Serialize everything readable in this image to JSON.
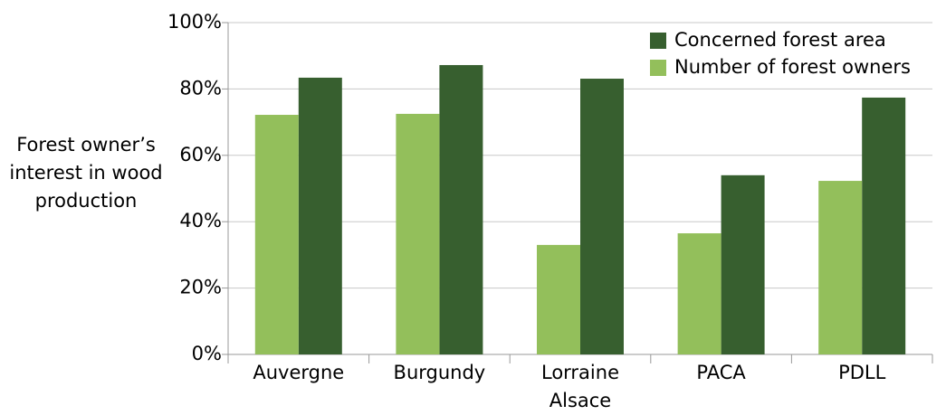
{
  "chart_data": {
    "type": "bar",
    "ylabel": "Forest owner’s interest in wood production",
    "categories": [
      "Auvergne",
      "Burgundy",
      "Lorraine Alsace",
      "PACA",
      "PDLL"
    ],
    "series": [
      {
        "name": "Concerned forest area",
        "color": "#375f2f",
        "values": [
          83.4,
          87.2,
          83.1,
          54.0,
          77.4
        ]
      },
      {
        "name": "Number of forest owners",
        "color": "#93bf5b",
        "values": [
          72.2,
          72.5,
          33.0,
          36.5,
          52.3
        ]
      }
    ],
    "ylim": [
      0,
      100
    ],
    "yticks": [
      {
        "value": 0,
        "label": "0%"
      },
      {
        "value": 20,
        "label": "20%"
      },
      {
        "value": 40,
        "label": "40%"
      },
      {
        "value": 60,
        "label": "60%"
      },
      {
        "value": 80,
        "label": "80%"
      },
      {
        "value": 100,
        "label": "100%"
      }
    ],
    "grid": true,
    "legend": "upper right"
  }
}
